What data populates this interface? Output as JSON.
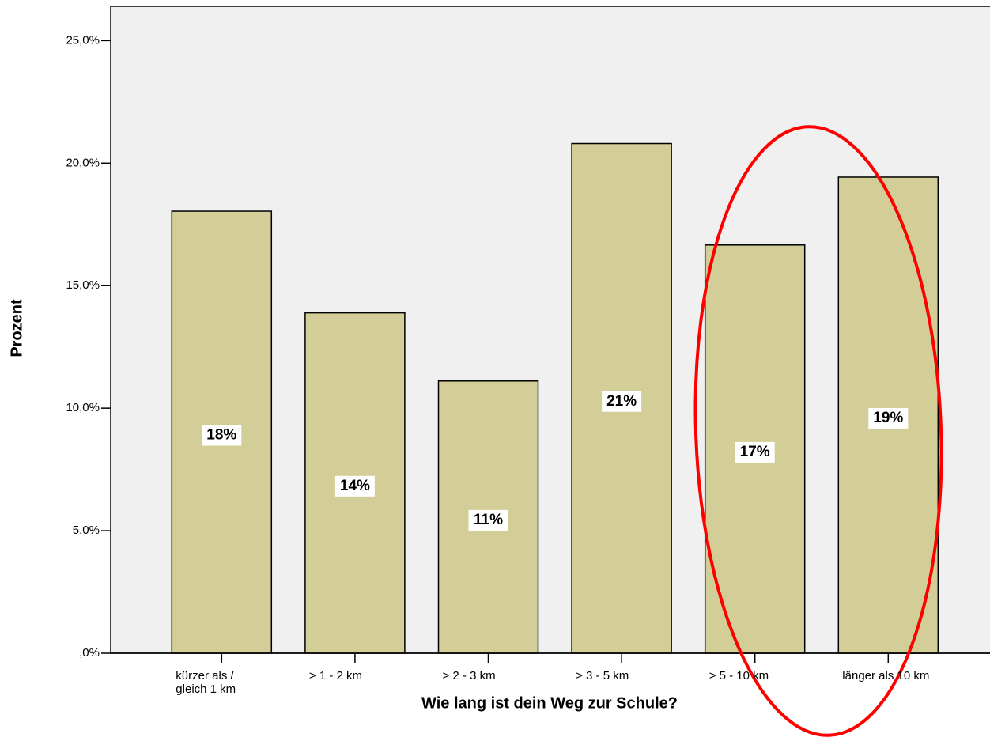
{
  "chart_data": {
    "type": "bar",
    "x_label": "Wie lang ist dein Weg zur Schule?",
    "y_label": "Prozent",
    "categories": [
      "kürzer als / gleich 1 km",
      "> 1 - 2 km",
      "> 2 - 3 km",
      "> 3 - 5 km",
      "> 5 - 10 km",
      "länger als 10 km"
    ],
    "values": [
      18.04,
      13.89,
      11.11,
      20.8,
      16.66,
      19.43
    ],
    "value_labels": [
      "18%",
      "14%",
      "11%",
      "21%",
      "17%",
      "19%"
    ],
    "color": "#d3ce98",
    "ylim": [
      0,
      26.4
    ],
    "yticks": [
      {
        "value": 0,
        "label": ",0%"
      },
      {
        "value": 5,
        "label": "5,0%"
      },
      {
        "value": 10,
        "label": "10,0%"
      },
      {
        "value": 15,
        "label": "15,0%"
      },
      {
        "value": 20,
        "label": "20,0%"
      },
      {
        "value": 25,
        "label": "25,0%"
      }
    ],
    "grid": false
  }
}
